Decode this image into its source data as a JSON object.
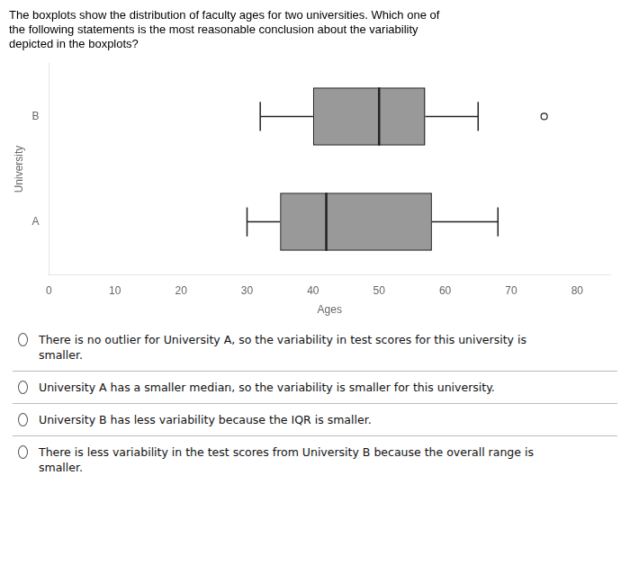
{
  "chart_data": {
    "type": "boxplot",
    "title": "The boxplots show the distribution of faculty ages for two universities. Which one of\nthe following statements is the most reasonable conclusion about the variability\ndepicted in the boxplots?",
    "xlabel": "Ages",
    "ylabel": "University",
    "orientation": "horizontal",
    "categories": [
      "A",
      "B"
    ],
    "values": [
      {
        "whisker_low": 30,
        "q1": 35,
        "median": 42,
        "q3": 58,
        "whisker_high": 68,
        "outliers": []
      },
      {
        "whisker_low": 32,
        "q1": 40,
        "median": 50,
        "q3": 57,
        "whisker_high": 65,
        "outliers": [
          75
        ]
      }
    ],
    "color": "#999999",
    "xlim": [
      0,
      85
    ],
    "xticks": [
      0,
      10,
      20,
      30,
      40,
      50,
      60,
      70,
      80
    ],
    "grid": false,
    "annotations": [
      "There is no outlier for University A, so the variability in test scores for this university is\nsmaller.",
      "University A has a smaller median, so the variability is smaller for this university.",
      "University B has less variability because the IQR is smaller.",
      "There is less variability in the test scores from University B because the overall range is\nsmaller."
    ]
  }
}
